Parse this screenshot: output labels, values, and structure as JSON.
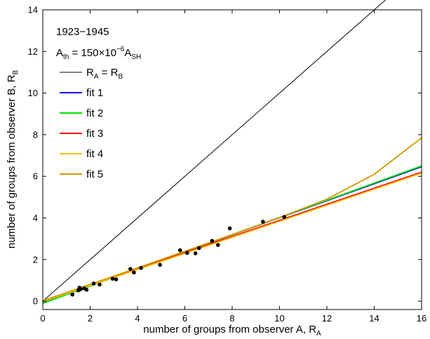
{
  "chart_data": {
    "type": "scatter",
    "title": "",
    "xlabel": {
      "main": "number of groups from observer A, R",
      "sub": "A"
    },
    "ylabel": {
      "main": "number of groups from observer B, R",
      "sub": "B"
    },
    "xlim": [
      0,
      16
    ],
    "ylim": [
      -0.4,
      14
    ],
    "x_ticks": [
      0,
      2,
      4,
      6,
      8,
      10,
      12,
      14,
      16
    ],
    "y_ticks": [
      0,
      2,
      4,
      6,
      8,
      10,
      12,
      14
    ],
    "grid": false,
    "legend_position": "top-left",
    "annotations": {
      "period": "1923−1945",
      "threshold": {
        "a": "A",
        "a_sub": "th",
        "eq": " = 150×10",
        "exp": "−6",
        "b": "A",
        "b_sub": "SH"
      }
    },
    "series": [
      {
        "name": "data",
        "kind": "points",
        "color": "#000000",
        "x": [
          1.25,
          1.5,
          1.55,
          1.6,
          1.75,
          1.85,
          2.15,
          2.4,
          2.95,
          3.1,
          3.7,
          3.85,
          4.15,
          4.95,
          5.8,
          6.1,
          6.45,
          6.6,
          7.15,
          7.4,
          7.9,
          9.3,
          10.2
        ],
        "y": [
          0.32,
          0.52,
          0.65,
          0.58,
          0.62,
          0.55,
          0.85,
          0.8,
          1.08,
          1.05,
          1.55,
          1.38,
          1.6,
          1.75,
          2.45,
          2.32,
          2.3,
          2.55,
          2.9,
          2.7,
          3.5,
          3.82,
          4.05
        ]
      },
      {
        "name": "R_A = R_B",
        "kind": "line",
        "color": "#000000",
        "x": [
          0,
          14.7
        ],
        "y": [
          0,
          14.7
        ]
      },
      {
        "name": "fit 1",
        "kind": "line",
        "color": "#0000ff",
        "x": [
          0,
          16
        ],
        "y": [
          -0.07,
          6.46
        ]
      },
      {
        "name": "fit 2",
        "kind": "line",
        "color": "#00e000",
        "x": [
          0,
          16
        ],
        "y": [
          -0.1,
          6.5
        ]
      },
      {
        "name": "fit 3",
        "kind": "line",
        "color": "#ff0000",
        "x": [
          0,
          16
        ],
        "y": [
          0.02,
          6.2
        ]
      },
      {
        "name": "fit 4",
        "kind": "line",
        "color": "#f5c400",
        "x": [
          0,
          16
        ],
        "y": [
          -0.02,
          6.15
        ]
      },
      {
        "name": "fit 5",
        "kind": "curve",
        "color": "#d49a00",
        "x": [
          0,
          2,
          4,
          6,
          8,
          10,
          12,
          14,
          16
        ],
        "y": [
          0.02,
          0.81,
          1.6,
          2.4,
          3.2,
          4.02,
          4.9,
          6.1,
          7.85
        ]
      }
    ],
    "legend": [
      {
        "label": {
          "main": "R",
          "sub1": "A",
          "eq": " = R",
          "sub2": "B"
        },
        "color": "#000000",
        "width": 1
      },
      {
        "label": "fit 1",
        "color": "#0000ff",
        "width": 2
      },
      {
        "label": "fit 2",
        "color": "#00e000",
        "width": 2
      },
      {
        "label": "fit 3",
        "color": "#ff0000",
        "width": 2
      },
      {
        "label": "fit 4",
        "color": "#f5c400",
        "width": 2
      },
      {
        "label": "fit 5",
        "color": "#d49a00",
        "width": 2
      }
    ]
  }
}
